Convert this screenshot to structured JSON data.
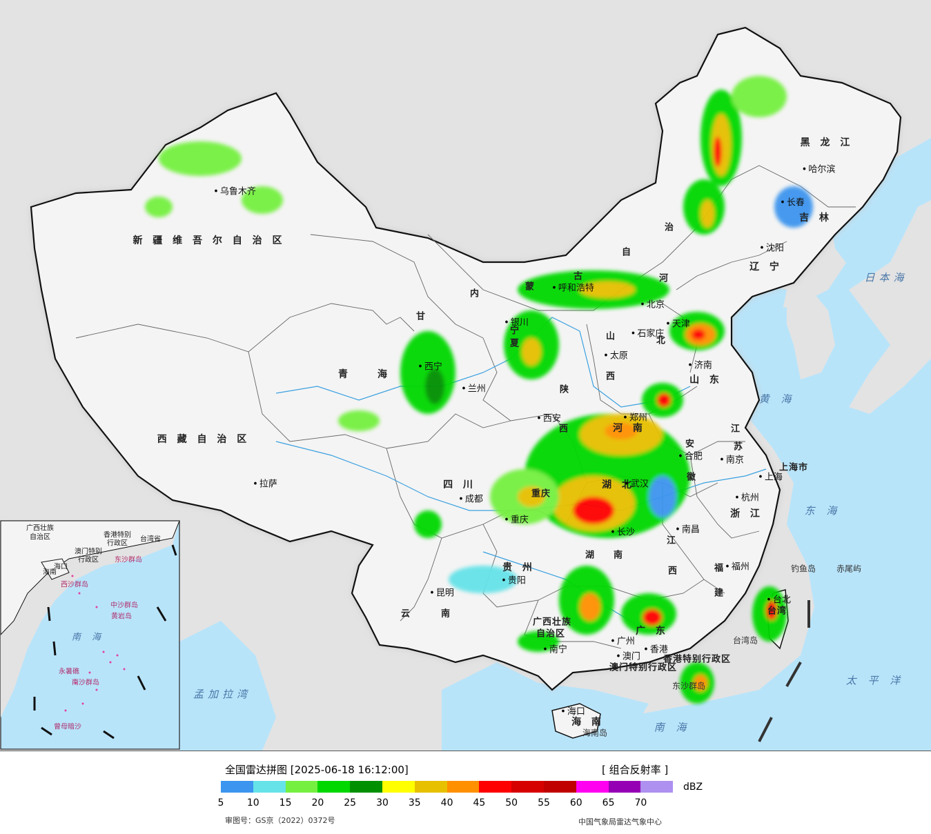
{
  "map": {
    "provinces": [
      {
        "text": "新 疆 维 吾 尔 自 治 区"
      },
      {
        "text": "西 藏 自 治 区"
      },
      {
        "text": "青　　海"
      },
      {
        "text": "甘"
      },
      {
        "text": "内"
      },
      {
        "text": "蒙"
      },
      {
        "text": "古"
      },
      {
        "text": "黑 龙 江"
      },
      {
        "text": "吉 林"
      },
      {
        "text": "辽 宁"
      },
      {
        "text": "河"
      },
      {
        "text": "北"
      },
      {
        "text": "山"
      },
      {
        "text": "西"
      },
      {
        "text": "山 东"
      },
      {
        "text": "河 南"
      },
      {
        "text": "陕"
      },
      {
        "text": "西"
      },
      {
        "text": "江"
      },
      {
        "text": "苏"
      },
      {
        "text": "安"
      },
      {
        "text": "徽"
      },
      {
        "text": "上海市"
      },
      {
        "text": "浙 江"
      },
      {
        "text": "四 川"
      },
      {
        "text": "重庆"
      },
      {
        "text": "湖 北"
      },
      {
        "text": "湖"
      },
      {
        "text": "南"
      },
      {
        "text": "江"
      },
      {
        "text": "西"
      },
      {
        "text": "福"
      },
      {
        "text": "建"
      },
      {
        "text": "贵 州"
      },
      {
        "text": "云"
      },
      {
        "text": "南"
      },
      {
        "text": "广西壮族"
      },
      {
        "text": "自治区"
      },
      {
        "text": "广 东"
      },
      {
        "text": "台湾"
      },
      {
        "text": "海 南"
      },
      {
        "text": "宁"
      },
      {
        "text": "夏"
      },
      {
        "text": "自"
      },
      {
        "text": "治"
      },
      {
        "text": "香港特别行政区"
      },
      {
        "text": "澳门特别行政区"
      }
    ],
    "cities": [
      {
        "text": "乌鲁木齐"
      },
      {
        "text": "拉萨"
      },
      {
        "text": "西宁"
      },
      {
        "text": "兰州"
      },
      {
        "text": "银川"
      },
      {
        "text": "呼和浩特"
      },
      {
        "text": "北京"
      },
      {
        "text": "天津"
      },
      {
        "text": "石家庄"
      },
      {
        "text": "太原"
      },
      {
        "text": "济南"
      },
      {
        "text": "郑州"
      },
      {
        "text": "西安"
      },
      {
        "text": "哈尔滨"
      },
      {
        "text": "长春"
      },
      {
        "text": "沈阳"
      },
      {
        "text": "南京"
      },
      {
        "text": "合肥"
      },
      {
        "text": "上海"
      },
      {
        "text": "杭州"
      },
      {
        "text": "武汉"
      },
      {
        "text": "长沙"
      },
      {
        "text": "南昌"
      },
      {
        "text": "福州"
      },
      {
        "text": "台北"
      },
      {
        "text": "成都"
      },
      {
        "text": "重庆"
      },
      {
        "text": "贵阳"
      },
      {
        "text": "昆明"
      },
      {
        "text": "南宁"
      },
      {
        "text": "广州"
      },
      {
        "text": "香港"
      },
      {
        "text": "澳门"
      },
      {
        "text": "海口"
      }
    ],
    "seas": [
      {
        "text": "日本海"
      },
      {
        "text": "黄 海"
      },
      {
        "text": "东 海"
      },
      {
        "text": "太 平 洋"
      },
      {
        "text": "南 海"
      },
      {
        "text": "孟加拉湾"
      }
    ],
    "islands": [
      {
        "text": "钓鱼岛"
      },
      {
        "text": "赤尾屿"
      },
      {
        "text": "台湾岛"
      },
      {
        "text": "东沙群岛"
      },
      {
        "text": "海南岛"
      }
    ],
    "inset": {
      "labels": [
        {
          "text": "广西壮族"
        },
        {
          "text": "自治区"
        },
        {
          "text": "澳门特别"
        },
        {
          "text": "行政区"
        },
        {
          "text": "香港特别"
        },
        {
          "text": "行政区"
        },
        {
          "text": "台湾省"
        },
        {
          "text": "海口"
        },
        {
          "text": "海南"
        },
        {
          "text": "南 海"
        }
      ],
      "red_labels": [
        {
          "text": "东沙群岛"
        },
        {
          "text": "西沙群岛"
        },
        {
          "text": "中沙群岛"
        },
        {
          "text": "黄岩岛"
        },
        {
          "text": "南沙群岛"
        },
        {
          "text": "永暑礁"
        },
        {
          "text": "曾母暗沙"
        }
      ]
    }
  },
  "legend": {
    "title": "全国雷达拼图 [2025-06-18 16:12:00]",
    "product": "[ 组合反射率 ]",
    "unit": "dBZ",
    "colors": [
      "#3c95ee",
      "#65e3e8",
      "#75f040",
      "#00d800",
      "#009000",
      "#ffff00",
      "#e7c000",
      "#ff9000",
      "#ff0000",
      "#d60000",
      "#c00000",
      "#ff00f0",
      "#9600b4",
      "#ad90f0"
    ],
    "ticks": [
      "5",
      "10",
      "15",
      "20",
      "25",
      "30",
      "35",
      "40",
      "45",
      "50",
      "55",
      "60",
      "65",
      "70"
    ],
    "approval": "审图号：GS京（2022）0372号",
    "source": "中国气象局雷达气象中心"
  }
}
